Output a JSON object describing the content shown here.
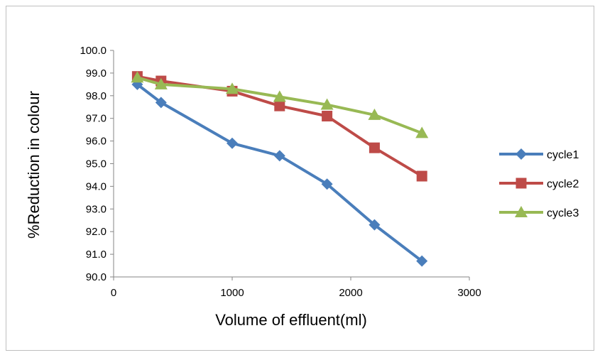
{
  "chart_data": {
    "type": "line",
    "title": "",
    "xlabel": "Volume of effluent(ml)",
    "ylabel": "%Reduction in colour",
    "xlim": [
      0,
      3000
    ],
    "ylim": [
      90.0,
      100.0
    ],
    "x_ticks": [
      "0",
      "1000",
      "2000",
      "3000"
    ],
    "y_ticks": [
      "90.0",
      "91.0",
      "92.0",
      "93.0",
      "94.0",
      "95.0",
      "96.0",
      "97.0",
      "98.0",
      "99.0",
      "100.0"
    ],
    "grid": false,
    "legend_position": "right",
    "series": [
      {
        "name": "cycle1",
        "color": "#4a7ebb",
        "marker": "diamond",
        "x": [
          200,
          400,
          1000,
          1400,
          1800,
          2200,
          2600
        ],
        "y": [
          98.5,
          97.7,
          95.9,
          95.35,
          94.1,
          92.3,
          90.7
        ]
      },
      {
        "name": "cycle2",
        "color": "#be4b48",
        "marker": "square",
        "x": [
          200,
          400,
          1000,
          1400,
          1800,
          2200,
          2600
        ],
        "y": [
          98.85,
          98.65,
          98.2,
          97.55,
          97.1,
          95.7,
          94.45
        ]
      },
      {
        "name": "cycle3",
        "color": "#98b954",
        "marker": "triangle",
        "x": [
          200,
          400,
          1000,
          1400,
          1800,
          2200,
          2600
        ],
        "y": [
          98.8,
          98.5,
          98.3,
          97.95,
          97.6,
          97.15,
          96.35
        ]
      }
    ]
  }
}
